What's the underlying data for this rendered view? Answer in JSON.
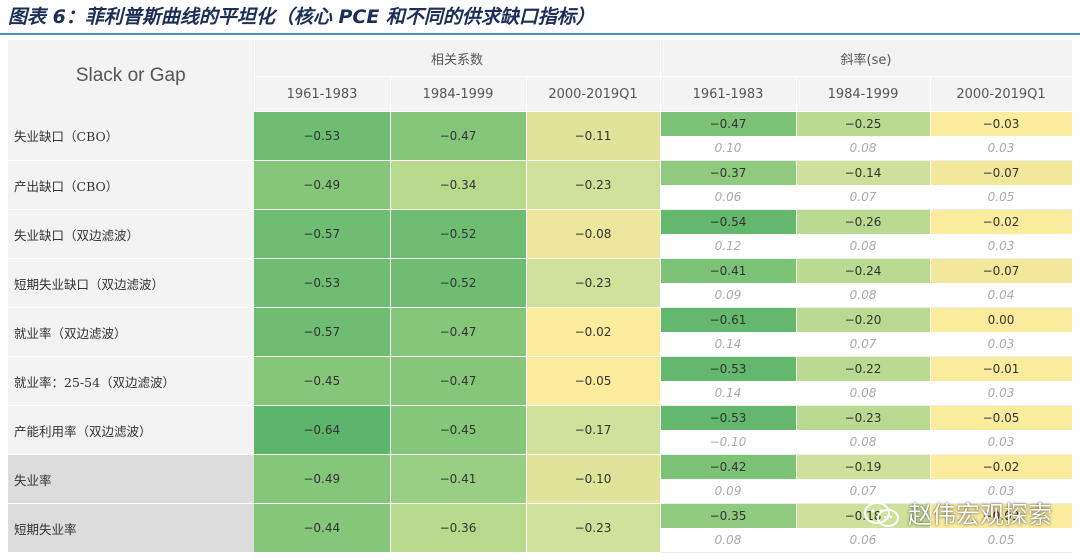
{
  "title": "图表 6：菲利普斯曲线的平坦化（核心 PCE 和不同的供求缺口指标）",
  "watermark": "赵伟宏观探索",
  "colors": {
    "green_dark": "#5fb86f",
    "green_mid": "#9ed28a",
    "yellow_green": "#d4e39a",
    "yellow": "#fbeb9c",
    "header_bg": "#f3f3f3"
  },
  "chart_data": {
    "type": "table",
    "corner_label": "Slack or Gap",
    "groups": [
      "相关系数",
      "斜率(se)"
    ],
    "periods": [
      "1961-1983",
      "1984-1999",
      "2000-2019Q1"
    ],
    "rows": [
      {
        "label": "失业缺口（CBO）",
        "corr": [
          "-0.53",
          "-0.47",
          "-0.11"
        ],
        "slope": [
          "-0.47",
          "-0.25",
          "-0.03"
        ],
        "se": [
          "0.10",
          "0.08",
          "0.03"
        ]
      },
      {
        "label": "产出缺口（CBO）",
        "corr": [
          "-0.49",
          "-0.34",
          "-0.23"
        ],
        "slope": [
          "-0.37",
          "-0.14",
          "-0.07"
        ],
        "se": [
          "0.06",
          "0.07",
          "0.05"
        ]
      },
      {
        "label": "失业缺口（双边滤波）",
        "corr": [
          "-0.57",
          "-0.52",
          "-0.08"
        ],
        "slope": [
          "-0.54",
          "-0.26",
          "-0.02"
        ],
        "se": [
          "0.12",
          "0.08",
          "0.03"
        ]
      },
      {
        "label": "短期失业缺口（双边滤波）",
        "corr": [
          "-0.53",
          "-0.52",
          "-0.23"
        ],
        "slope": [
          "-0.41",
          "-0.24",
          "-0.07"
        ],
        "se": [
          "0.09",
          "0.08",
          "0.04"
        ]
      },
      {
        "label": "就业率（双边滤波）",
        "corr": [
          "-0.57",
          "-0.47",
          "-0.02"
        ],
        "slope": [
          "-0.61",
          "-0.20",
          "0.00"
        ],
        "se": [
          "0.14",
          "0.07",
          "0.03"
        ]
      },
      {
        "label": "就业率：25-54（双边滤波）",
        "corr": [
          "-0.45",
          "-0.47",
          "-0.05"
        ],
        "slope": [
          "-0.53",
          "-0.22",
          "-0.01"
        ],
        "se": [
          "0.14",
          "0.08",
          "0.03"
        ]
      },
      {
        "label": "产能利用率（双边滤波）",
        "corr": [
          "-0.64",
          "-0.45",
          "-0.17"
        ],
        "slope": [
          "-0.53",
          "-0.23",
          "-0.05"
        ],
        "se": [
          "-0.10",
          "0.08",
          "0.03"
        ]
      },
      {
        "label": "失业率",
        "corr": [
          "-0.49",
          "-0.41",
          "-0.10"
        ],
        "slope": [
          "-0.42",
          "-0.19",
          "-0.02"
        ],
        "se": [
          "0.09",
          "0.07",
          "0.03"
        ]
      },
      {
        "label": "短期失业率",
        "corr": [
          "-0.44",
          "-0.36",
          "-0.23"
        ],
        "slope": [
          "-0.35",
          "-0.18",
          "-0.03"
        ],
        "se": [
          "0.08",
          "0.06",
          "0.05"
        ]
      }
    ]
  }
}
